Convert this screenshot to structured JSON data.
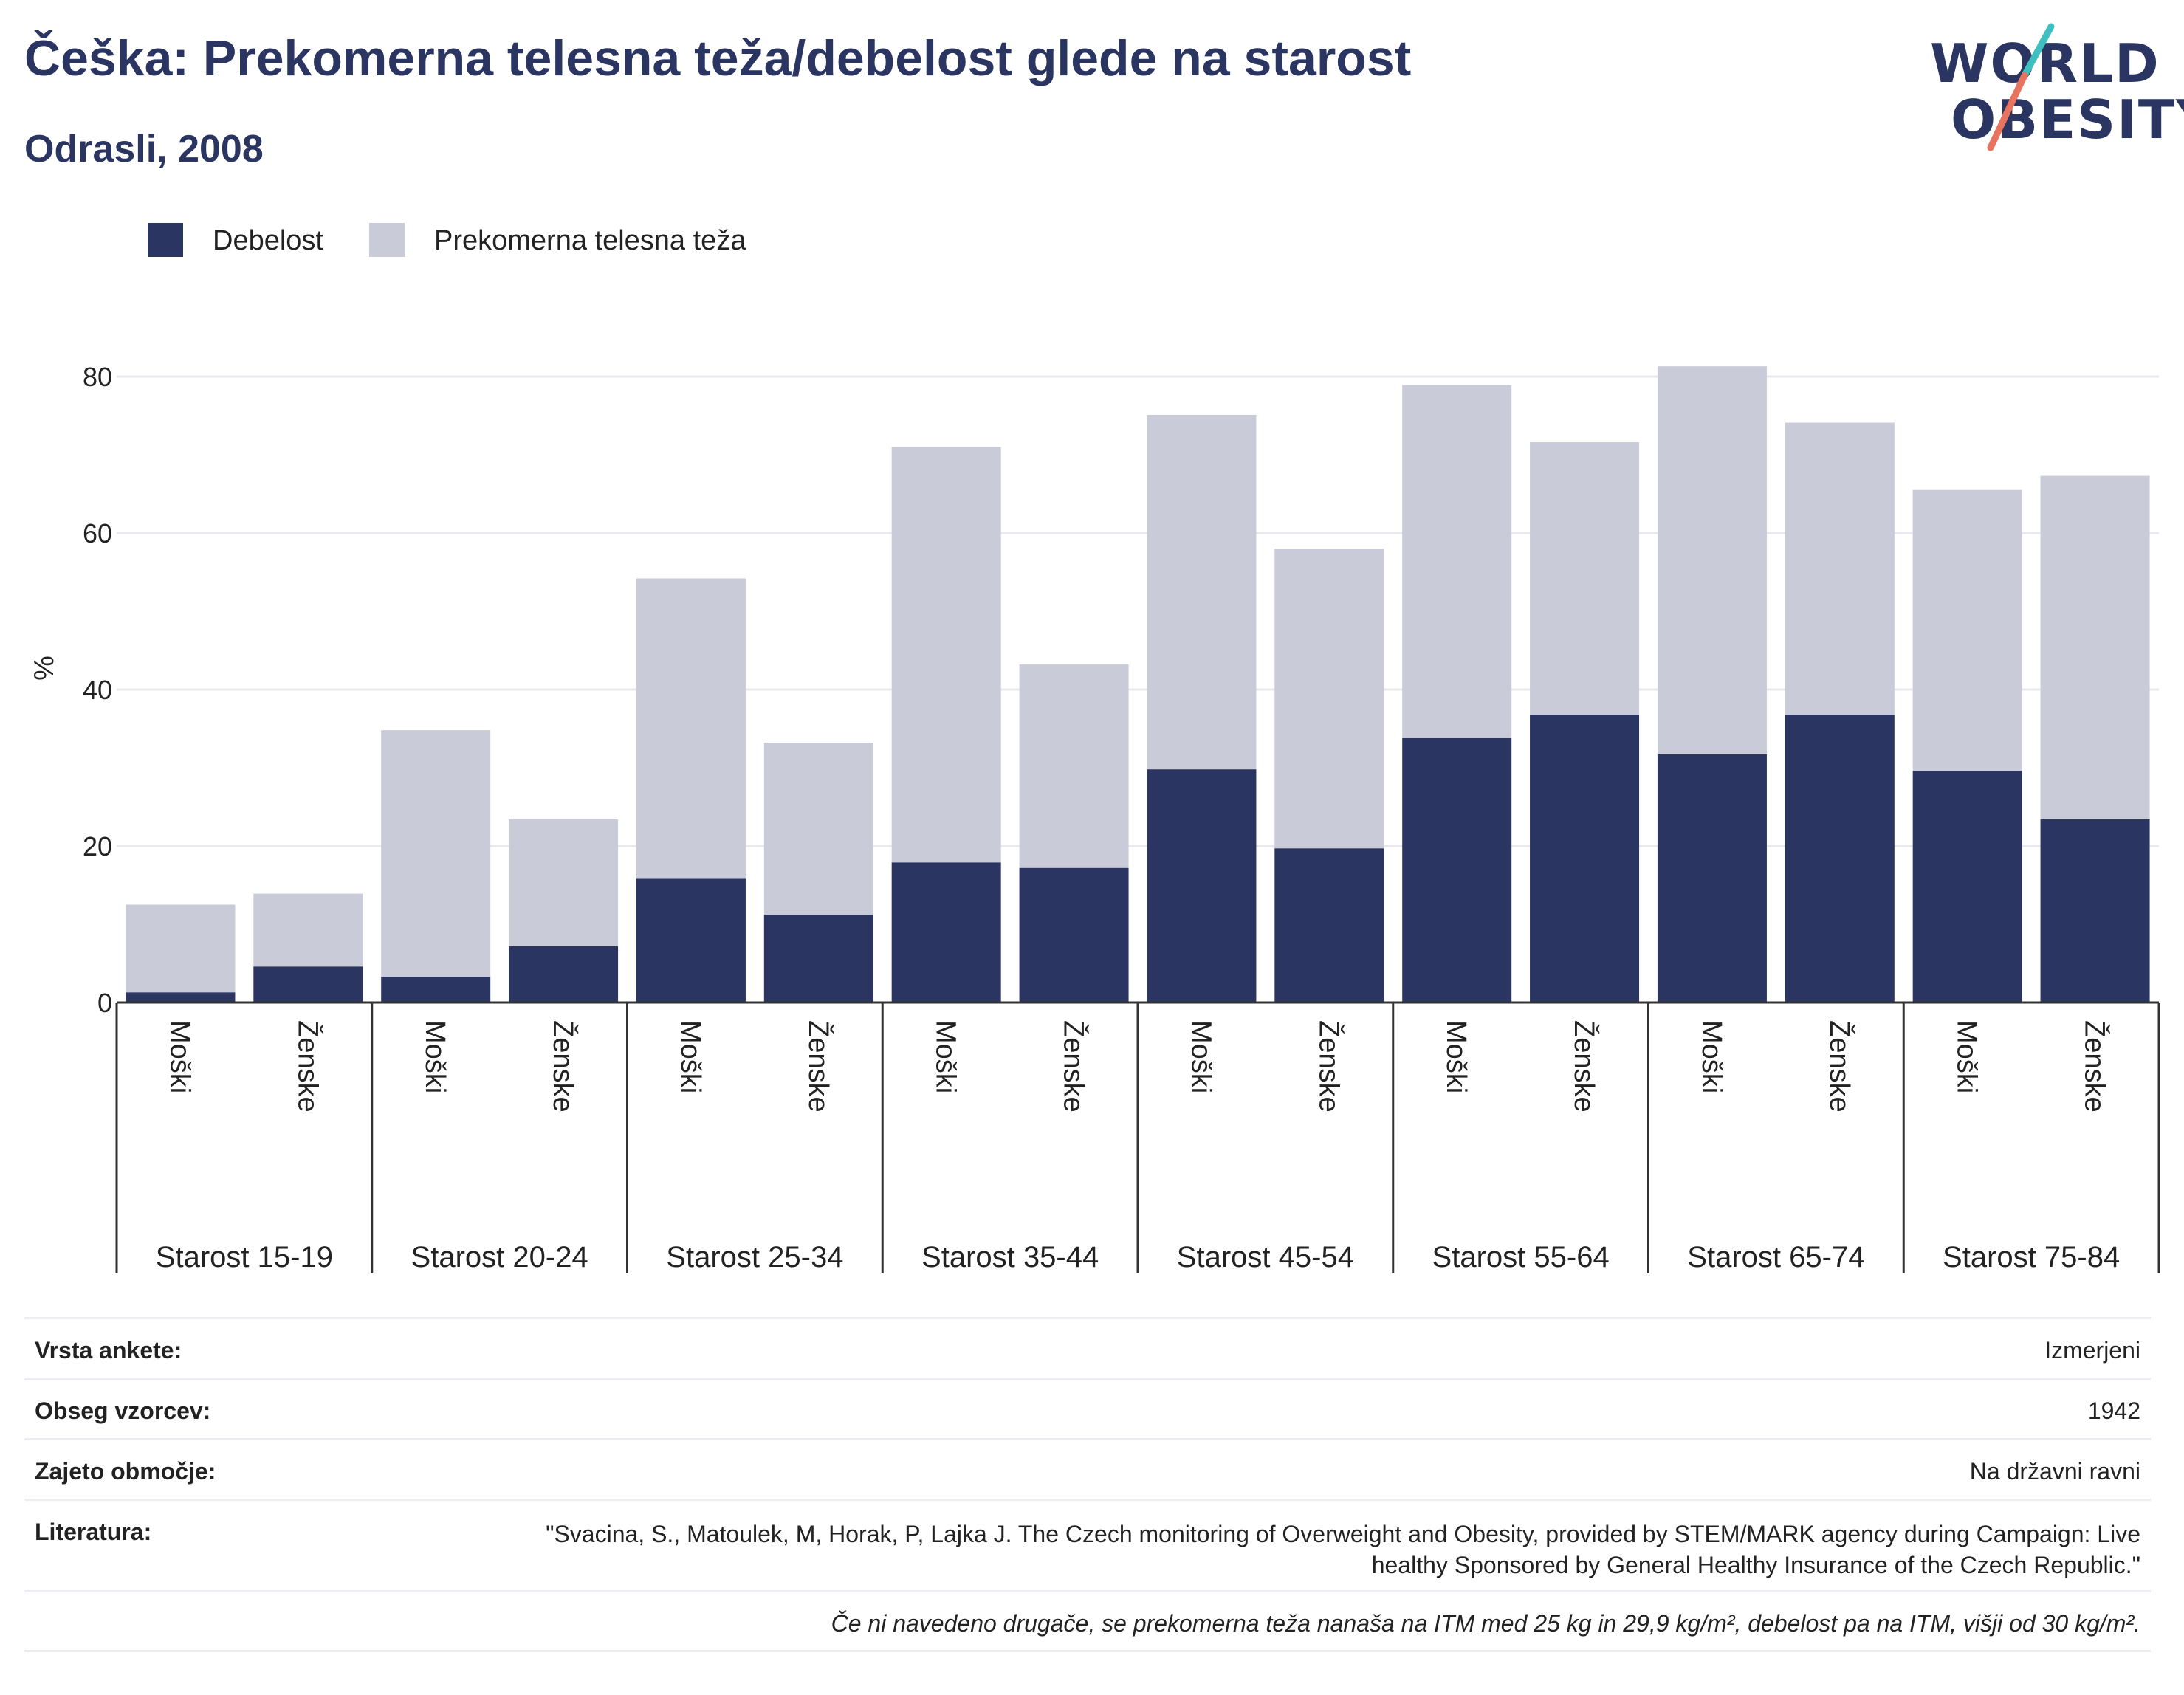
{
  "header": {
    "title": "Češka: Prekomerna telesna teža/debelost glede na starost",
    "subtitle": "Odrasli, 2008"
  },
  "logo": {
    "line1": "WORLD",
    "line2": "OBESITY"
  },
  "legend": [
    {
      "label": "Debelost",
      "color": "#2a3561"
    },
    {
      "label": "Prekomerna telesna teža",
      "color": "#c9cbd8"
    }
  ],
  "chart_data": {
    "type": "bar",
    "stacked": true,
    "ylabel": "%",
    "xlabel": "",
    "ylim": [
      0,
      90
    ],
    "yticks": [
      0,
      20,
      40,
      60,
      80
    ],
    "grid": true,
    "legend_position": "top-left",
    "groups": [
      "Starost 15-19",
      "Starost 20-24",
      "Starost 25-34",
      "Starost 35-44",
      "Starost 45-54",
      "Starost 55-64",
      "Starost 65-74",
      "Starost 75-84"
    ],
    "subcategories": [
      "Moški",
      "Ženske"
    ],
    "categories": [
      "Moški",
      "Ženske",
      "Moški",
      "Ženske",
      "Moški",
      "Ženske",
      "Moški",
      "Ženske",
      "Moški",
      "Ženske",
      "Moški",
      "Ženske",
      "Moški",
      "Ženske",
      "Moški",
      "Ženske"
    ],
    "series": [
      {
        "name": "Debelost",
        "color": "#2a3561",
        "values": [
          1.3,
          4.6,
          3.3,
          7.2,
          15.9,
          11.2,
          17.9,
          17.2,
          29.8,
          19.7,
          33.8,
          36.8,
          31.7,
          36.8,
          29.6,
          23.4
        ]
      },
      {
        "name": "Prekomerna telesna teža",
        "color": "#c9cbd8",
        "values": [
          11.2,
          9.3,
          31.5,
          16.2,
          38.3,
          22.0,
          53.1,
          26.0,
          45.3,
          38.3,
          45.1,
          34.8,
          49.6,
          37.3,
          35.9,
          43.9
        ]
      }
    ]
  },
  "info": {
    "rows": [
      {
        "label": "Vrsta ankete:",
        "value": "Izmerjeni"
      },
      {
        "label": "Obseg vzorcev:",
        "value": "1942"
      },
      {
        "label": "Zajeto območje:",
        "value": "Na državni ravni"
      }
    ],
    "literature_label": "Literatura:",
    "literature_value": "\"Svacina, S., Matoulek, M, Horak, P, Lajka J. The Czech monitoring of Overweight and Obesity, provided by STEM/MARK agency during Campaign: Live healthy Sponsored by General Healthy Insurance of the Czech Republic.\"",
    "note": "Če ni navedeno drugače, se prekomerna teža nanaša na ITM med 25 kg in 29,9 kg/m², debelost pa na ITM, višji od 30 kg/m²."
  }
}
